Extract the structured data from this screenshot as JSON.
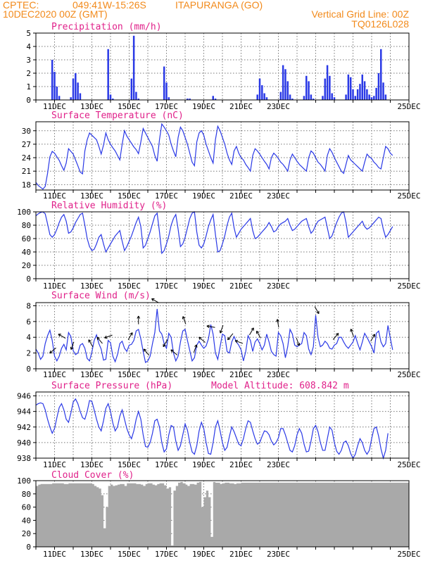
{
  "header": {
    "source": "CPTEC:",
    "coords": "049:41W-15:26S",
    "location": "ITAPURANGA (GO)",
    "run": "10DEC2020 00Z (GMT)",
    "grid_note": "Vertical Grid Line: 00Z",
    "model_code": "TQ0126L028"
  },
  "colors": {
    "header": "#f28a1b",
    "title": "#e0218a",
    "series": "#2a39e6",
    "cloud": "#a9a9a9"
  },
  "x_labels": [
    "11DEC",
    "13DEC",
    "15DEC",
    "17DEC",
    "19DEC",
    "21DEC",
    "23DEC",
    "25DEC"
  ],
  "chart_data": [
    {
      "type": "bar",
      "title": "Precipitation (mm/h)",
      "x_start": "10DEC2020 00Z",
      "step_hours": 3,
      "ylim": [
        0,
        5
      ],
      "yticks": [
        0,
        1,
        2,
        3,
        4,
        5
      ],
      "values": [
        0,
        0,
        0,
        0,
        0,
        0,
        0,
        3.0,
        2.1,
        1.0,
        0.3,
        0,
        0,
        0,
        0,
        0.2,
        1.6,
        2.0,
        1.3,
        0.5,
        0,
        0,
        0,
        0,
        0,
        0,
        0,
        0,
        0,
        0,
        0,
        3.8,
        0.4,
        0.1,
        0,
        0,
        0,
        0,
        0,
        0,
        0,
        1.6,
        4.8,
        0.6,
        0.1,
        0,
        0,
        0,
        0,
        0,
        0,
        0,
        0,
        0,
        0,
        2.5,
        1.3,
        0.2,
        0,
        0,
        0,
        0,
        0,
        0,
        0,
        0.1,
        0.1,
        0,
        0,
        0,
        0,
        0,
        0,
        0,
        0,
        0,
        0.3,
        0.1,
        0,
        0,
        0,
        0,
        0,
        0,
        0,
        0,
        0,
        0,
        0,
        0,
        0,
        0,
        0,
        0,
        0,
        0.4,
        1.6,
        1.1,
        0.5,
        0.2,
        0,
        0,
        0,
        0,
        0,
        0.6,
        2.6,
        2.3,
        1.4,
        0.4,
        0.1,
        0,
        0,
        0,
        0,
        0.3,
        1.8,
        1.4,
        0.4,
        0.1,
        0,
        0,
        0,
        0.3,
        1.6,
        2.6,
        1.8,
        0.5,
        0.2,
        0,
        0,
        0,
        0,
        0.4,
        1.9,
        1.7,
        0.8,
        0.3,
        0.8,
        1.2,
        1.9,
        1.4,
        0.8,
        0.4,
        0.2,
        0.3,
        0.9,
        2.0,
        3.8,
        1.3,
        0.4
      ]
    },
    {
      "type": "line",
      "title": "Surface Temperature (nC)",
      "x_start": "10DEC2020 00Z",
      "step_hours": 3,
      "ylim": [
        16.8,
        32.0
      ],
      "yticks": [
        18,
        21,
        24,
        27,
        30
      ],
      "values": [
        18.5,
        17.8,
        17.4,
        17.0,
        17.6,
        20.5,
        24.2,
        25.4,
        25.0,
        24.2,
        23.4,
        22.2,
        21.2,
        22.8,
        26.0,
        25.4,
        24.8,
        23.5,
        22.2,
        20.8,
        20.4,
        25.5,
        28.0,
        29.5,
        29.0,
        28.5,
        28.0,
        26.5,
        24.8,
        26.8,
        29.5,
        28.0,
        27.0,
        26.2,
        25.5,
        24.5,
        23.5,
        27.0,
        30.0,
        28.8,
        28.0,
        27.2,
        26.4,
        25.8,
        24.9,
        27.5,
        30.5,
        29.5,
        28.5,
        27.5,
        26.5,
        24.5,
        23.2,
        28.0,
        31.5,
        30.8,
        30.0,
        29.0,
        27.0,
        25.5,
        24.2,
        28.5,
        30.8,
        30.0,
        28.5,
        27.0,
        25.0,
        23.0,
        22.2,
        27.5,
        29.5,
        30.0,
        29.0,
        27.0,
        25.5,
        24.0,
        22.8,
        28.0,
        31.0,
        30.0,
        28.5,
        27.0,
        25.0,
        23.5,
        22.5,
        25.5,
        26.5,
        25.0,
        24.0,
        23.5,
        22.5,
        21.8,
        21.0,
        24.5,
        26.0,
        25.5,
        24.8,
        24.0,
        23.2,
        22.5,
        21.5,
        24.0,
        25.0,
        24.5,
        23.8,
        23.0,
        22.5,
        21.8,
        21.0,
        23.5,
        24.8,
        24.0,
        23.2,
        22.5,
        22.0,
        21.5,
        21.0,
        24.0,
        25.5,
        25.0,
        24.0,
        23.0,
        22.5,
        21.8,
        21.0,
        24.5,
        26.0,
        25.2,
        24.0,
        23.0,
        22.0,
        21.0,
        20.5,
        22.5,
        24.5,
        23.5,
        23.0,
        22.5,
        22.0,
        21.5,
        21.0,
        23.0,
        24.8,
        24.2,
        23.8,
        23.0,
        22.5,
        21.8,
        21.5,
        24.0,
        26.5,
        26.0,
        25.0,
        24.5
      ]
    },
    {
      "type": "line",
      "title": "Relative Humidity (%)",
      "x_start": "10DEC2020 00Z",
      "step_hours": 3,
      "ylim": [
        0,
        100
      ],
      "yticks": [
        0,
        20,
        40,
        60,
        80,
        100
      ],
      "values": [
        94,
        97,
        99,
        100,
        97,
        82,
        66,
        62,
        66,
        74,
        84,
        92,
        96,
        86,
        68,
        70,
        76,
        84,
        90,
        96,
        98,
        80,
        60,
        48,
        42,
        44,
        52,
        62,
        66,
        52,
        40,
        46,
        52,
        58,
        64,
        68,
        72,
        56,
        42,
        48,
        56,
        64,
        74,
        84,
        92,
        78,
        46,
        50,
        60,
        70,
        82,
        94,
        98,
        70,
        38,
        42,
        52,
        64,
        80,
        90,
        96,
        74,
        48,
        52,
        62,
        76,
        90,
        98,
        100,
        70,
        50,
        46,
        52,
        64,
        78,
        88,
        96,
        66,
        40,
        42,
        52,
        64,
        80,
        92,
        98,
        76,
        62,
        68,
        74,
        78,
        82,
        86,
        90,
        72,
        60,
        62,
        66,
        70,
        74,
        78,
        84,
        78,
        70,
        72,
        78,
        82,
        84,
        86,
        90,
        80,
        72,
        74,
        78,
        82,
        86,
        88,
        90,
        78,
        68,
        72,
        80,
        86,
        88,
        90,
        92,
        76,
        60,
        64,
        74,
        84,
        92,
        98,
        100,
        84,
        62,
        66,
        70,
        74,
        78,
        82,
        86,
        78,
        74,
        76,
        80,
        84,
        88,
        92,
        90,
        74,
        62,
        66,
        72,
        78
      ]
    },
    {
      "type": "line",
      "title": "Surface Wind (m/s)",
      "x_start": "10DEC2020 00Z",
      "step_hours": 3,
      "ylim": [
        0,
        8.4
      ],
      "yticks": [
        0,
        2,
        4,
        6,
        8
      ],
      "values": [
        2.5,
        2.0,
        1.2,
        1.6,
        3.2,
        4.2,
        4.9,
        3.6,
        1.6,
        1.0,
        1.6,
        2.6,
        3.1,
        2.4,
        4.6,
        4.1,
        2.3,
        1.8,
        2.0,
        3.0,
        3.2,
        2.6,
        1.3,
        1.0,
        2.1,
        3.6,
        4.3,
        3.2,
        2.5,
        1.1,
        1.2,
        3.6,
        3.3,
        1.6,
        0.9,
        1.8,
        3.2,
        3.5,
        2.6,
        2.2,
        3.0,
        3.1,
        3.6,
        4.8,
        5.0,
        3.8,
        2.2,
        0.8,
        1.0,
        1.6,
        3.2,
        4.6,
        7.6,
        4.8,
        4.4,
        3.2,
        2.6,
        4.5,
        4.0,
        2.0,
        1.0,
        1.6,
        3.4,
        4.8,
        5.0,
        3.6,
        2.3,
        1.0,
        1.4,
        3.0,
        3.5,
        3.0,
        2.6,
        2.9,
        3.8,
        5.6,
        4.4,
        2.0,
        1.2,
        2.8,
        4.4,
        4.2,
        2.2,
        2.0,
        3.4,
        4.1,
        3.4,
        3.0,
        2.4,
        1.0,
        2.2,
        4.2,
        3.6,
        2.2,
        3.4,
        3.8,
        3.2,
        2.4,
        3.0,
        4.4,
        3.4,
        2.2,
        1.8,
        1.6,
        4.6,
        4.2,
        3.2,
        1.4,
        2.8,
        5.0,
        4.4,
        3.0,
        2.8,
        3.0,
        3.2,
        4.6,
        4.2,
        2.5,
        1.8,
        2.8,
        6.8,
        4.0,
        2.8,
        3.0,
        3.5,
        3.2,
        2.6,
        2.5,
        3.0,
        3.2,
        4.0,
        4.0,
        3.4,
        2.9,
        2.6,
        3.0,
        3.4,
        4.2,
        3.2,
        2.4,
        3.4,
        4.5,
        4.0,
        3.4,
        2.8,
        2.0,
        4.5,
        4.8,
        3.4,
        2.8,
        3.2,
        5.5,
        3.9,
        2.4
      ]
    },
    {
      "type": "line",
      "title": "Surface Pressure (hPa)",
      "annotation": "Model Altitude: 608.842 m",
      "x_start": "10DEC2020 00Z",
      "step_hours": 3,
      "ylim": [
        938,
        946.5
      ],
      "yticks": [
        938,
        940,
        942,
        944,
        946
      ],
      "values": [
        944.8,
        945.0,
        945.1,
        945.0,
        944.2,
        943.0,
        942.0,
        941.2,
        941.8,
        943.2,
        944.5,
        945.0,
        944.2,
        943.0,
        942.6,
        943.8,
        945.2,
        945.6,
        945.0,
        944.0,
        943.2,
        943.0,
        944.0,
        945.4,
        945.3,
        944.2,
        943.0,
        942.0,
        941.5,
        942.8,
        944.4,
        945.0,
        944.0,
        942.5,
        941.5,
        942.0,
        943.4,
        944.2,
        943.0,
        941.8,
        941.0,
        940.5,
        941.5,
        943.0,
        944.0,
        943.0,
        941.0,
        939.5,
        939.4,
        940.0,
        941.2,
        942.8,
        943.0,
        942.0,
        940.0,
        938.8,
        939.2,
        941.0,
        942.2,
        942.0,
        940.2,
        939.0,
        939.6,
        941.0,
        942.4,
        941.6,
        940.0,
        938.8,
        938.5,
        939.6,
        941.5,
        942.6,
        941.8,
        940.0,
        938.6,
        938.5,
        940.0,
        942.0,
        942.8,
        941.5,
        940.0,
        939.0,
        939.4,
        940.8,
        942.0,
        941.4,
        940.6,
        939.8,
        939.6,
        940.5,
        941.8,
        942.8,
        942.6,
        941.5,
        940.5,
        939.8,
        940.0,
        940.8,
        941.5,
        941.4,
        941.0,
        940.2,
        939.7,
        940.0,
        940.6,
        941.8,
        941.8,
        941.0,
        940.0,
        939.0,
        938.8,
        939.6,
        941.0,
        941.8,
        941.2,
        939.8,
        938.8,
        938.9,
        940.2,
        941.8,
        942.2,
        941.4,
        940.0,
        939.0,
        939.0,
        940.5,
        942.0,
        941.6,
        940.0,
        938.9,
        938.5,
        939.0,
        940.0,
        940.2,
        939.6,
        938.6,
        938.0,
        938.5,
        939.6,
        940.5,
        940.0,
        939.0,
        938.5,
        939.0,
        940.5,
        941.8,
        942.0,
        940.8,
        939.2,
        938.0,
        939.0,
        941.2
      ]
    },
    {
      "type": "area",
      "title": "Cloud Cover (%)",
      "x_start": "10DEC2020 00Z",
      "step_hours": 3,
      "ylim": [
        0,
        100
      ],
      "yticks": [
        0,
        20,
        40,
        60,
        80,
        100
      ],
      "values": [
        92,
        94,
        95,
        95,
        95,
        95,
        95,
        96,
        96,
        96,
        96,
        96,
        95,
        95,
        96,
        96,
        96,
        96,
        96,
        96,
        96,
        96,
        96,
        96,
        95,
        92,
        90,
        88,
        78,
        28,
        60,
        92,
        94,
        92,
        93,
        94,
        95,
        95,
        92,
        96,
        96,
        96,
        96,
        95,
        95,
        94,
        92,
        95,
        96,
        96,
        94,
        93,
        95,
        96,
        96,
        93,
        88,
        90,
        2,
        85,
        92,
        97,
        98,
        96,
        94,
        92,
        95,
        95,
        94,
        97,
        98,
        60,
        75,
        85,
        75,
        15,
        98,
        97,
        97,
        95,
        96,
        97,
        97,
        96,
        96,
        95,
        96,
        96,
        97,
        97,
        97,
        97,
        97,
        97,
        97,
        97,
        97,
        97,
        97,
        97,
        97,
        97,
        97,
        97,
        97,
        97,
        97,
        97,
        97,
        97,
        97,
        97,
        97,
        97,
        97,
        97,
        97,
        97,
        97,
        97,
        97,
        97,
        97,
        97,
        97,
        97,
        97,
        97,
        97,
        97,
        97,
        97,
        97,
        97,
        97,
        97,
        97,
        97,
        97,
        97,
        97,
        97,
        97,
        97,
        97,
        97,
        97,
        97,
        97,
        97,
        97,
        97,
        97,
        97,
        97,
        97,
        97,
        97,
        97,
        97,
        97,
        97
      ]
    }
  ]
}
